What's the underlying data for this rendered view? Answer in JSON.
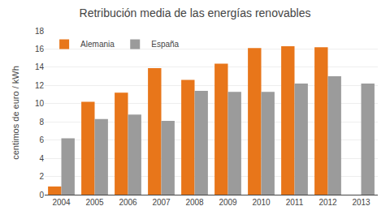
{
  "chart_data": {
    "type": "bar",
    "title": "Retribución media de las energías renovables",
    "ylabel": "centimos de euro / kWh",
    "categories": [
      "2004",
      "2005",
      "2006",
      "2007",
      "2008",
      "2009",
      "2010",
      "2011",
      "2012",
      "2013"
    ],
    "series": [
      {
        "name": "Alemania",
        "color": "#E8761A",
        "values": [
          0.9,
          10.2,
          11.2,
          13.9,
          12.6,
          14.4,
          16.1,
          16.3,
          16.2,
          null
        ]
      },
      {
        "name": "España",
        "color": "#9B9B9B",
        "values": [
          6.2,
          8.3,
          8.8,
          8.1,
          11.4,
          11.3,
          11.3,
          12.2,
          13.0,
          12.2
        ]
      }
    ],
    "ylim": [
      0,
      18
    ],
    "yticks": [
      0,
      2,
      4,
      6,
      8,
      10,
      12,
      14,
      16,
      18
    ],
    "grid": true,
    "legend": "upper left"
  }
}
